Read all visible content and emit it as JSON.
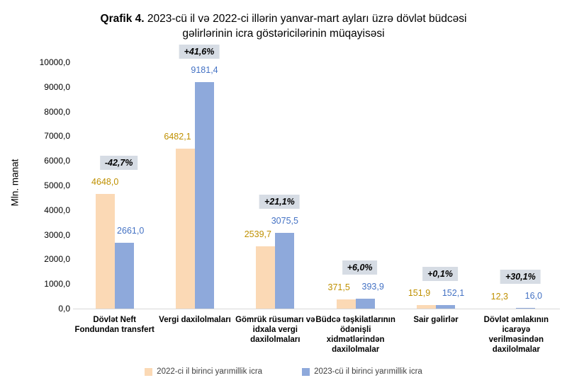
{
  "title": {
    "bold": "Qrafik 4.",
    "rest": " 2023-cü il və 2022-ci illərin yanvar-mart ayları üzrə dövlət büdcəsi gəlirlərinin icra göstəricilərinin müqayisəsi"
  },
  "chart_data": {
    "type": "bar",
    "title": "Qrafik 4. 2023-cü il və 2022-ci illərin yanvar-mart ayları üzrə dövlət büdcəsi gəlirlərinin icra göstəricilərinin müqayisəsi",
    "xlabel": "",
    "ylabel": "Mln. manat",
    "ylim": [
      0,
      10000
    ],
    "ytick_step": 1000,
    "ytick_labels": [
      "0,0",
      "1000,0",
      "2000,0",
      "3000,0",
      "4000,0",
      "5000,0",
      "6000,0",
      "7000,0",
      "8000,0",
      "9000,0",
      "10000,0"
    ],
    "grid": false,
    "legend_position": "bottom",
    "categories": [
      "Dövlət Neft Fondundan transfert",
      "Vergi daxilolmaları",
      "Gömrük rüsumarı və idxala vergi daxilolmaları",
      "Büdcə təşkilatlarının ödənişli xidmətlərindən daxilolmalar",
      "Sair gəlirlər",
      "Dövlət əmlakının icarəyə verilməsindən daxilolmalar"
    ],
    "series": [
      {
        "name": "2022-ci il birinci yarımillik icra",
        "color": "#FBD9B5",
        "label_color": "#BF9000",
        "values": [
          4648.0,
          6482.1,
          2539.7,
          371.5,
          151.9,
          12.3
        ],
        "value_labels": [
          "4648,0",
          "6482,1",
          "2539,7",
          "371,5",
          "151,9",
          "12,3"
        ]
      },
      {
        "name": "2023-cü il birinci yarımillik icra",
        "color": "#8EA9DB",
        "label_color": "#4472C4",
        "values": [
          2661.0,
          9181.4,
          3075.5,
          393.9,
          152.1,
          16.0
        ],
        "value_labels": [
          "2661,0",
          "9181,4",
          "3075,5",
          "393,9",
          "152,1",
          "16,0"
        ]
      }
    ],
    "annotations": [
      "-42,7%",
      "+41,6%",
      "+21,1%",
      "+6,0%",
      "+0,1%",
      "+30,1%"
    ],
    "annotation_bg": "#D6DCE4",
    "axis_line_color": "#D9D9D9"
  }
}
